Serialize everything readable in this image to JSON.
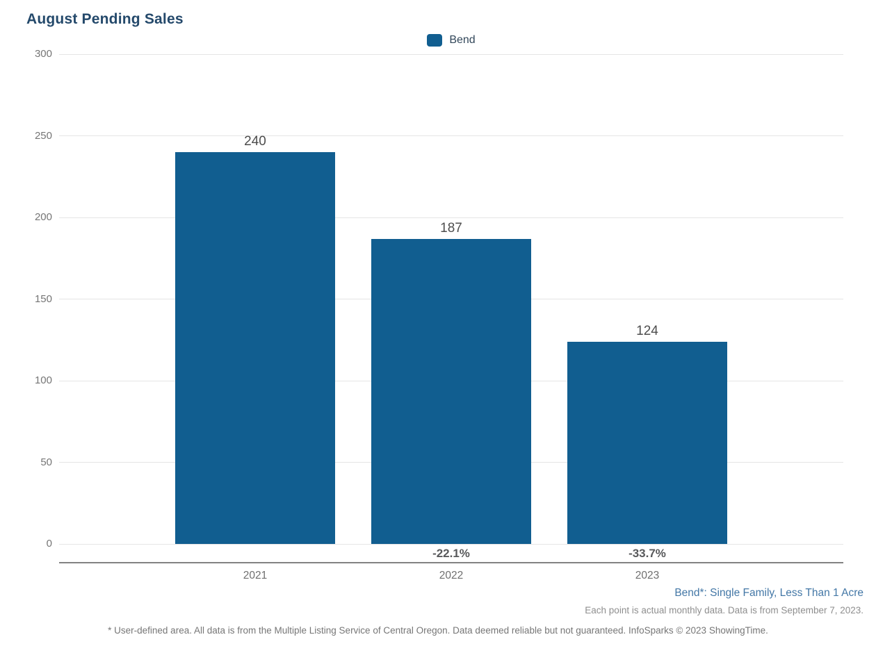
{
  "title": "August Pending Sales",
  "legend": {
    "label": "Bend",
    "swatch_color": "#115E90"
  },
  "colors": {
    "bar": "#115E90",
    "title_text": "#24496B",
    "axis_label": "#757575",
    "value_label": "#4d4d4d",
    "pct_label": "#58595B",
    "series_footnote": "#4377A6"
  },
  "chart_data": {
    "type": "bar",
    "title": "August Pending Sales",
    "categories": [
      "2021",
      "2022",
      "2023"
    ],
    "series": [
      {
        "name": "Bend",
        "values": [
          240,
          187,
          124
        ],
        "color": "#115E90"
      }
    ],
    "bar_value_labels": [
      "240",
      "187",
      "124"
    ],
    "pct_change_labels": [
      "",
      "-22.1%",
      "-33.7%"
    ],
    "xlabel": "",
    "ylabel": "",
    "ylim": [
      0,
      300
    ],
    "yticks": [
      0,
      50,
      100,
      150,
      200,
      250,
      300
    ],
    "grid": true,
    "legend_position": "top"
  },
  "footnotes": {
    "series_definition": "Bend*: Single Family, Less Than 1 Acre",
    "data_note": "Each point is actual monthly data. Data is from September 7, 2023.",
    "disclaimer": "* User-defined area. All data is from the Multiple Listing Service of Central Oregon. Data deemed reliable but not guaranteed. InfoSparks © 2023 ShowingTime."
  }
}
